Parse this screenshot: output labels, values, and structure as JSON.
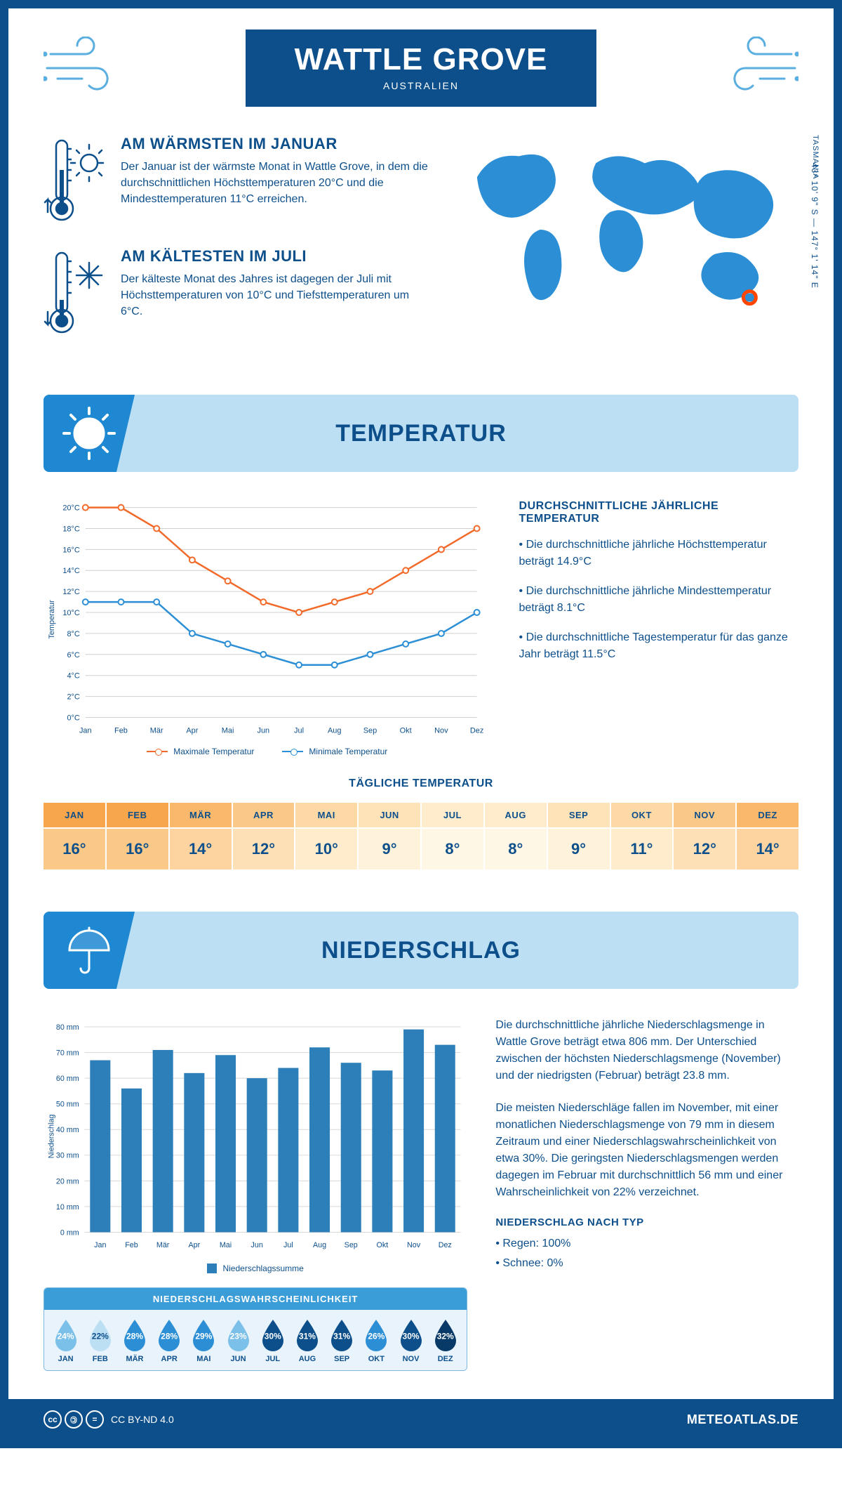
{
  "header": {
    "title": "WATTLE GROVE",
    "subtitle": "AUSTRALIEN"
  },
  "coords": "43° 10' 9\" S — 147° 1' 14\" E",
  "region": "TASMANIA",
  "facts": {
    "warm": {
      "title": "AM WÄRMSTEN IM JANUAR",
      "text": "Der Januar ist der wärmste Monat in Wattle Grove, in dem die durchschnittlichen Höchsttemperaturen 20°C und die Mindesttemperaturen 11°C erreichen."
    },
    "cold": {
      "title": "AM KÄLTESTEN IM JULI",
      "text": "Der kälteste Monat des Jahres ist dagegen der Juli mit Höchsttemperaturen von 10°C und Tiefsttemperaturen um 6°C."
    }
  },
  "temperature": {
    "band_title": "TEMPERATUR",
    "side_title": "DURCHSCHNITTLICHE JÄHRLICHE TEMPERATUR",
    "bullets": [
      "• Die durchschnittliche jährliche Höchsttemperatur beträgt 14.9°C",
      "• Die durchschnittliche jährliche Mindesttemperatur beträgt 8.1°C",
      "• Die durchschnittliche Tagestemperatur für das ganze Jahr beträgt 11.5°C"
    ],
    "chart": {
      "months": [
        "Jan",
        "Feb",
        "Mär",
        "Apr",
        "Mai",
        "Jun",
        "Jul",
        "Aug",
        "Sep",
        "Okt",
        "Nov",
        "Dez"
      ],
      "y_max": 20,
      "y_step": 2,
      "max_series": [
        20,
        20,
        18,
        15,
        13,
        11,
        10,
        11,
        12,
        14,
        16,
        18
      ],
      "min_series": [
        11,
        11,
        11,
        8,
        7,
        6,
        5,
        5,
        6,
        7,
        8,
        10
      ],
      "max_color": "#f26a2a",
      "min_color": "#2c8fd6",
      "grid_color": "#d8d8d8",
      "axis_label": "Temperatur",
      "legend_max": "Maximale Temperatur",
      "legend_min": "Minimale Temperatur"
    },
    "daily_title": "TÄGLICHE TEMPERATUR",
    "daily": {
      "months": [
        "JAN",
        "FEB",
        "MÄR",
        "APR",
        "MAI",
        "JUN",
        "JUL",
        "AUG",
        "SEP",
        "OKT",
        "NOV",
        "DEZ"
      ],
      "values": [
        "16°",
        "16°",
        "14°",
        "12°",
        "10°",
        "9°",
        "8°",
        "8°",
        "9°",
        "11°",
        "12°",
        "14°"
      ],
      "head_colors": [
        "#f7a64b",
        "#f7a64b",
        "#f9b86b",
        "#fbc987",
        "#fdd9a5",
        "#fee3b9",
        "#ffeccc",
        "#ffeccc",
        "#fee3b9",
        "#fdd9a5",
        "#fbc987",
        "#f9b86b"
      ],
      "val_colors": [
        "#fbc987",
        "#fbc987",
        "#fdd3a0",
        "#fee0b6",
        "#ffeccc",
        "#fff2da",
        "#fff7e6",
        "#fff7e6",
        "#fff2da",
        "#ffeccc",
        "#fee0b6",
        "#fdd3a0"
      ]
    }
  },
  "precip": {
    "band_title": "NIEDERSCHLAG",
    "chart": {
      "months": [
        "Jan",
        "Feb",
        "Mär",
        "Apr",
        "Mai",
        "Jun",
        "Jul",
        "Aug",
        "Sep",
        "Okt",
        "Nov",
        "Dez"
      ],
      "values": [
        67,
        56,
        71,
        62,
        69,
        60,
        64,
        72,
        66,
        63,
        79,
        73
      ],
      "y_max": 80,
      "y_step": 10,
      "bar_color": "#2c7fb8",
      "grid_color": "#d8d8d8",
      "axis_label": "Niederschlag",
      "legend": "Niederschlagssumme"
    },
    "para1": "Die durchschnittliche jährliche Niederschlagsmenge in Wattle Grove beträgt etwa 806 mm. Der Unterschied zwischen der höchsten Niederschlagsmenge (November) und der niedrigsten (Februar) beträgt 23.8 mm.",
    "para2": "Die meisten Niederschläge fallen im November, mit einer monatlichen Niederschlagsmenge von 79 mm in diesem Zeitraum und einer Niederschlagswahrscheinlichkeit von etwa 30%. Die geringsten Niederschlagsmengen werden dagegen im Februar mit durchschnittlich 56 mm und einer Wahrscheinlichkeit von 22% verzeichnet.",
    "type_title": "NIEDERSCHLAG NACH TYP",
    "type_bullets": [
      "• Regen: 100%",
      "• Schnee: 0%"
    ],
    "prob": {
      "title": "NIEDERSCHLAGSWAHRSCHEINLICHKEIT",
      "months": [
        "JAN",
        "FEB",
        "MÄR",
        "APR",
        "MAI",
        "JUN",
        "JUL",
        "AUG",
        "SEP",
        "OKT",
        "NOV",
        "DEZ"
      ],
      "values": [
        "24%",
        "22%",
        "28%",
        "28%",
        "29%",
        "23%",
        "30%",
        "31%",
        "31%",
        "26%",
        "30%",
        "32%"
      ],
      "shades": [
        "light",
        "lightest",
        "mid",
        "mid",
        "mid",
        "light",
        "dark",
        "dark",
        "dark",
        "mid",
        "dark",
        "darkest"
      ],
      "shade_colors": {
        "lightest": "#bcdff4",
        "light": "#7bc0e8",
        "mid": "#2c8fd6",
        "dark": "#0d4f8b",
        "darkest": "#083a68"
      }
    }
  },
  "footer": {
    "license": "CC BY-ND 4.0",
    "brand": "METEOATLAS.DE"
  }
}
